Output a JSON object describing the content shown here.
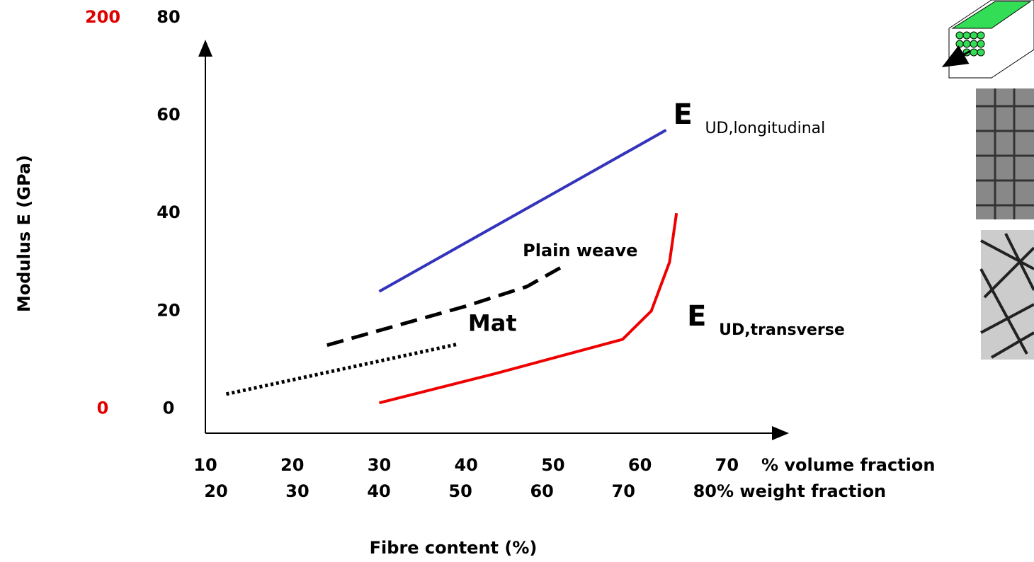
{
  "chart_data": {
    "type": "line",
    "y_label": "Modulus E  (GPa)",
    "x_label": "Fibre content (%)",
    "x_axis_name": "% volume fraction",
    "x2_axis_name": "% weight fraction",
    "xlim": [
      10,
      76
    ],
    "xticks": [
      10,
      20,
      30,
      40,
      50,
      60,
      70
    ],
    "x2lim": [
      18.7,
      89.1
    ],
    "x2ticks": [
      20,
      30,
      40,
      50,
      60,
      70,
      80
    ],
    "ylim": [
      -5,
      80
    ],
    "yticks": [
      0,
      20,
      40,
      60,
      80
    ],
    "y2lim": [
      -12.5,
      200
    ],
    "y2ticks": [
      0,
      200
    ],
    "y2_color": "#e00000",
    "series": [
      {
        "name": "E",
        "subscript": "UD,longitudinal",
        "color": "#3333bb",
        "dash": "solid",
        "x": [
          30,
          63
        ],
        "values": [
          24,
          57
        ]
      },
      {
        "name": "Plain weave",
        "color": "#000000",
        "dash": "dashed",
        "x": [
          24,
          40,
          47,
          51
        ],
        "values": [
          13,
          21,
          25,
          29
        ]
      },
      {
        "name": "Mat",
        "color": "#000000",
        "dash": "dotted",
        "x": [
          12.4,
          39
        ],
        "values": [
          3,
          13.2
        ]
      },
      {
        "name": "E",
        "subscript": "UD,transverse",
        "color": "#ee0000",
        "dash": "solid",
        "x": [
          30,
          43.4,
          58,
          61.3,
          63.4,
          64.2
        ],
        "values": [
          1.2,
          7.2,
          14.2,
          20,
          30,
          40
        ]
      }
    ]
  }
}
